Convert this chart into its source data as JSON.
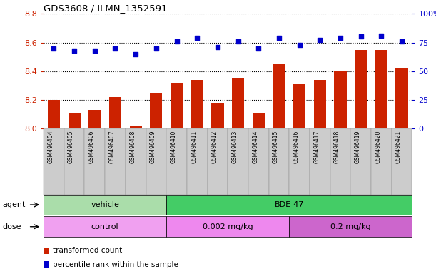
{
  "title": "GDS3608 / ILMN_1352591",
  "samples": [
    "GSM496404",
    "GSM496405",
    "GSM496406",
    "GSM496407",
    "GSM496408",
    "GSM496409",
    "GSM496410",
    "GSM496411",
    "GSM496412",
    "GSM496413",
    "GSM496414",
    "GSM496415",
    "GSM496416",
    "GSM496417",
    "GSM496418",
    "GSM496419",
    "GSM496420",
    "GSM496421"
  ],
  "bar_values": [
    8.2,
    8.11,
    8.13,
    8.22,
    8.02,
    8.25,
    8.32,
    8.34,
    8.18,
    8.35,
    8.11,
    8.45,
    8.31,
    8.34,
    8.4,
    8.55,
    8.55,
    8.42
  ],
  "dot_values": [
    70,
    68,
    68,
    70,
    65,
    70,
    76,
    79,
    71,
    76,
    70,
    79,
    73,
    77,
    79,
    80,
    81,
    76
  ],
  "bar_color": "#cc2200",
  "dot_color": "#0000cc",
  "ylim_left": [
    8.0,
    8.8
  ],
  "ylim_right": [
    0,
    100
  ],
  "yticks_left": [
    8.0,
    8.2,
    8.4,
    8.6,
    8.8
  ],
  "yticks_right": [
    0,
    25,
    50,
    75,
    100
  ],
  "ytick_labels_right": [
    "0",
    "25",
    "50",
    "75",
    "100%"
  ],
  "agent_groups": [
    {
      "label": "vehicle",
      "start": 0,
      "end": 6,
      "color": "#aaddaa"
    },
    {
      "label": "BDE-47",
      "start": 6,
      "end": 18,
      "color": "#44cc66"
    }
  ],
  "dose_groups": [
    {
      "label": "control",
      "start": 0,
      "end": 6,
      "color": "#f0a0f0"
    },
    {
      "label": "0.002 mg/kg",
      "start": 6,
      "end": 12,
      "color": "#ee88ee"
    },
    {
      "label": "0.2 mg/kg",
      "start": 12,
      "end": 18,
      "color": "#cc66cc"
    }
  ],
  "legend_bar_label": "transformed count",
  "legend_dot_label": "percentile rank within the sample",
  "agent_label": "agent",
  "dose_label": "dose",
  "bar_bottom": 8.0,
  "tick_label_color_left": "#cc2200",
  "tick_label_color_right": "#0000cc",
  "xtick_bg_color": "#cccccc",
  "xtick_border_color": "#888888"
}
